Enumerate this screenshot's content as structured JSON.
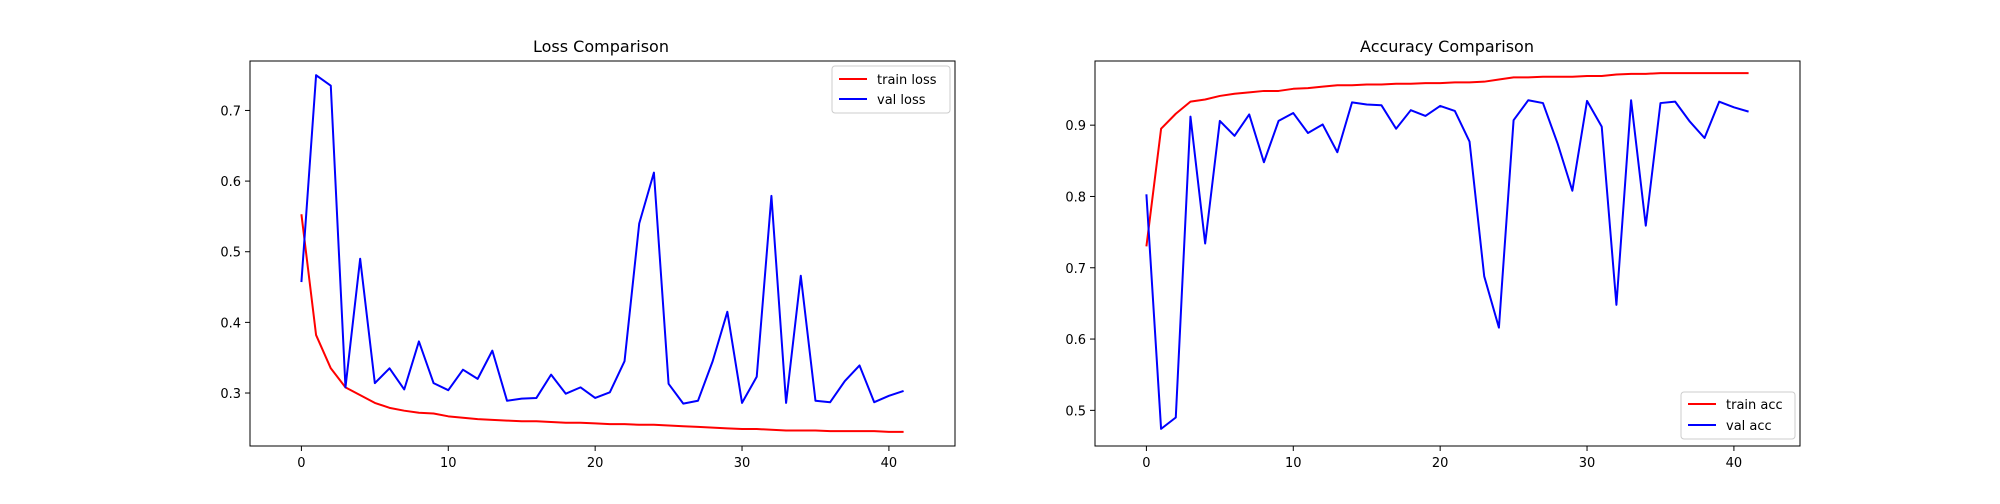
{
  "chart_data": [
    {
      "type": "line",
      "title": "Loss Comparison",
      "xlabel": "",
      "ylabel": "",
      "xlim": [
        -3.5,
        44.5
      ],
      "ylim": [
        0.225,
        0.77
      ],
      "xticks": [
        0,
        10,
        20,
        30,
        40
      ],
      "yticks": [
        0.3,
        0.4,
        0.5,
        0.6,
        0.7
      ],
      "ytick_labels": [
        "0.3",
        "0.4",
        "0.5",
        "0.6",
        "0.7"
      ],
      "grid": false,
      "legend_position": "upper right",
      "x": [
        0,
        1,
        2,
        3,
        4,
        5,
        6,
        7,
        8,
        9,
        10,
        11,
        12,
        13,
        14,
        15,
        16,
        17,
        18,
        19,
        20,
        21,
        22,
        23,
        24,
        25,
        26,
        27,
        28,
        29,
        30,
        31,
        32,
        33,
        34,
        35,
        36,
        37,
        38,
        39,
        40,
        41
      ],
      "series": [
        {
          "name": "train loss",
          "color": "#ff0000",
          "values": [
            0.553,
            0.382,
            0.335,
            0.308,
            0.297,
            0.286,
            0.279,
            0.275,
            0.272,
            0.271,
            0.267,
            0.265,
            0.263,
            0.262,
            0.261,
            0.26,
            0.26,
            0.259,
            0.258,
            0.258,
            0.257,
            0.256,
            0.256,
            0.255,
            0.255,
            0.254,
            0.253,
            0.252,
            0.251,
            0.25,
            0.249,
            0.249,
            0.248,
            0.247,
            0.247,
            0.247,
            0.246,
            0.246,
            0.246,
            0.246,
            0.245,
            0.245
          ]
        },
        {
          "name": "val loss",
          "color": "#0000ff",
          "values": [
            0.457,
            0.75,
            0.735,
            0.308,
            0.49,
            0.314,
            0.335,
            0.305,
            0.373,
            0.314,
            0.304,
            0.333,
            0.32,
            0.36,
            0.289,
            0.292,
            0.293,
            0.326,
            0.299,
            0.308,
            0.293,
            0.301,
            0.345,
            0.54,
            0.612,
            0.313,
            0.285,
            0.289,
            0.345,
            0.415,
            0.286,
            0.323,
            0.579,
            0.286,
            0.466,
            0.289,
            0.287,
            0.317,
            0.339,
            0.287,
            0.296,
            0.303
          ]
        }
      ]
    },
    {
      "type": "line",
      "title": "Accuracy Comparison",
      "xlabel": "",
      "ylabel": "",
      "xlim": [
        -3.5,
        44.5
      ],
      "ylim": [
        0.45,
        0.99
      ],
      "xticks": [
        0,
        10,
        20,
        30,
        40
      ],
      "yticks": [
        0.5,
        0.6,
        0.7,
        0.8,
        0.9
      ],
      "ytick_labels": [
        "0.5",
        "0.6",
        "0.7",
        "0.8",
        "0.9"
      ],
      "grid": false,
      "legend_position": "lower right",
      "x": [
        0,
        1,
        2,
        3,
        4,
        5,
        6,
        7,
        8,
        9,
        10,
        11,
        12,
        13,
        14,
        15,
        16,
        17,
        18,
        19,
        20,
        21,
        22,
        23,
        24,
        25,
        26,
        27,
        28,
        29,
        30,
        31,
        32,
        33,
        34,
        35,
        36,
        37,
        38,
        39,
        40,
        41
      ],
      "series": [
        {
          "name": "train acc",
          "color": "#ff0000",
          "values": [
            0.73,
            0.895,
            0.916,
            0.933,
            0.936,
            0.941,
            0.944,
            0.946,
            0.948,
            0.948,
            0.951,
            0.952,
            0.954,
            0.956,
            0.956,
            0.957,
            0.957,
            0.958,
            0.958,
            0.959,
            0.959,
            0.96,
            0.96,
            0.961,
            0.964,
            0.967,
            0.967,
            0.968,
            0.968,
            0.968,
            0.969,
            0.969,
            0.971,
            0.972,
            0.972,
            0.973,
            0.973,
            0.973,
            0.973,
            0.973,
            0.973,
            0.973
          ]
        },
        {
          "name": "val acc",
          "color": "#0000ff",
          "values": [
            0.803,
            0.474,
            0.49,
            0.912,
            0.734,
            0.906,
            0.885,
            0.915,
            0.848,
            0.906,
            0.917,
            0.889,
            0.901,
            0.862,
            0.932,
            0.929,
            0.928,
            0.895,
            0.921,
            0.913,
            0.927,
            0.92,
            0.877,
            0.688,
            0.616,
            0.907,
            0.935,
            0.931,
            0.874,
            0.808,
            0.934,
            0.898,
            0.648,
            0.935,
            0.759,
            0.931,
            0.933,
            0.905,
            0.882,
            0.933,
            0.925,
            0.919
          ]
        }
      ]
    }
  ]
}
